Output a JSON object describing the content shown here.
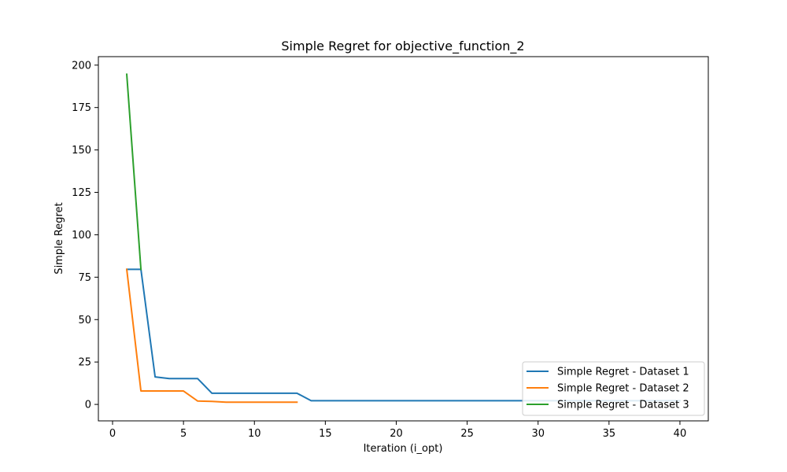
{
  "chart_data": {
    "type": "line",
    "title": "Simple Regret for objective_function_2",
    "xlabel": "Iteration (i_opt)",
    "ylabel": "Simple Regret",
    "xlim": [
      -1,
      42
    ],
    "ylim": [
      -9.7,
      205
    ],
    "x_ticks": [
      0,
      5,
      10,
      15,
      20,
      25,
      30,
      35,
      40
    ],
    "y_ticks": [
      0,
      25,
      50,
      75,
      100,
      125,
      150,
      175,
      200
    ],
    "grid": false,
    "legend_position": "lower-right",
    "series": [
      {
        "name": "Simple Regret - Dataset 1",
        "color": "#1f77b4",
        "x": [
          1,
          2,
          3,
          4,
          5,
          6,
          7,
          8,
          9,
          10,
          11,
          12,
          13,
          14,
          15,
          16,
          17,
          18,
          19,
          20,
          21,
          22,
          23,
          24,
          25,
          26,
          27,
          28,
          29,
          30,
          31,
          32,
          33,
          34,
          35,
          36,
          37,
          38,
          39,
          40
        ],
        "values": [
          79.6,
          79.6,
          16.2,
          15.2,
          15.2,
          15.2,
          6.6,
          6.6,
          6.6,
          6.6,
          6.6,
          6.6,
          6.6,
          2.2,
          2.2,
          2.2,
          2.2,
          2.2,
          2.2,
          2.2,
          2.2,
          2.2,
          2.2,
          2.2,
          2.2,
          2.2,
          2.2,
          2.2,
          2.2,
          2.2,
          2.2,
          2.2,
          2.2,
          2.2,
          2.2,
          2.2,
          2.2,
          2.2,
          2.2,
          2.2
        ]
      },
      {
        "name": "Simple Regret - Dataset 2",
        "color": "#ff7f0e",
        "x": [
          1,
          2,
          3,
          4,
          5,
          6,
          7,
          8,
          9,
          10,
          11,
          12,
          13
        ],
        "values": [
          79.6,
          7.9,
          7.9,
          7.9,
          7.9,
          2.0,
          1.8,
          1.3,
          1.3,
          1.3,
          1.3,
          1.3,
          1.3
        ]
      },
      {
        "name": "Simple Regret - Dataset 3",
        "color": "#2ca02c",
        "x": [
          1,
          2
        ],
        "values": [
          194.6,
          79.6
        ]
      }
    ]
  }
}
